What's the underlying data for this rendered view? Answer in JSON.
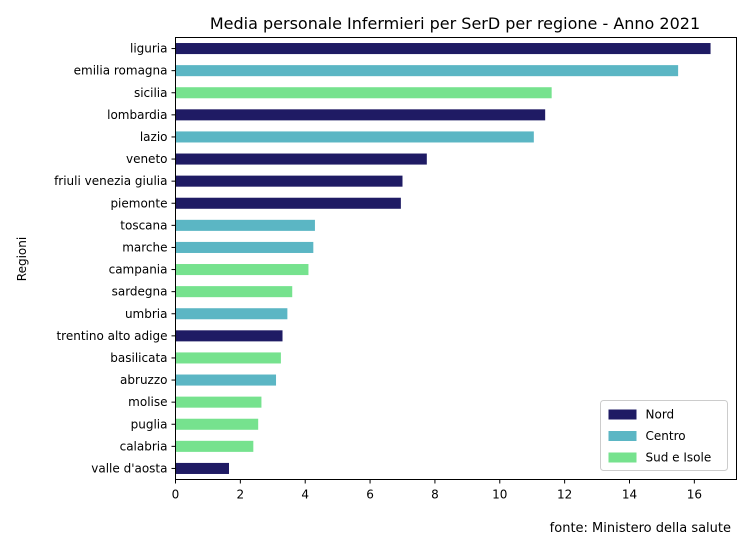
{
  "chart_data": {
    "type": "bar",
    "orientation": "horizontal",
    "title": "Media personale Infermieri per SerD per regione - Anno 2021",
    "xlabel": "",
    "ylabel": "Regioni",
    "xlim": [
      0,
      17.3
    ],
    "x_ticks": [
      "0",
      "2",
      "4",
      "6",
      "8",
      "10",
      "12",
      "14",
      "16"
    ],
    "grid": false,
    "legend_position": "bottom-right",
    "note": "fonte: Ministero della salute",
    "series": [
      {
        "name": "Nord",
        "color": "#1f1b64"
      },
      {
        "name": "Centro",
        "color": "#5bb6c4"
      },
      {
        "name": "Sud e Isole",
        "color": "#76e28e"
      }
    ],
    "bars": [
      {
        "category": "liguria",
        "value": 16.5,
        "series": "Nord"
      },
      {
        "category": "emilia romagna",
        "value": 15.5,
        "series": "Centro"
      },
      {
        "category": "sicilia",
        "value": 11.6,
        "series": "Sud e Isole"
      },
      {
        "category": "lombardia",
        "value": 11.4,
        "series": "Nord"
      },
      {
        "category": "lazio",
        "value": 11.05,
        "series": "Centro"
      },
      {
        "category": "veneto",
        "value": 7.75,
        "series": "Nord"
      },
      {
        "category": "friuli venezia giulia",
        "value": 7.0,
        "series": "Nord"
      },
      {
        "category": "piemonte",
        "value": 6.95,
        "series": "Nord"
      },
      {
        "category": "toscana",
        "value": 4.3,
        "series": "Centro"
      },
      {
        "category": "marche",
        "value": 4.25,
        "series": "Centro"
      },
      {
        "category": "campania",
        "value": 4.1,
        "series": "Sud e Isole"
      },
      {
        "category": "sardegna",
        "value": 3.6,
        "series": "Sud e Isole"
      },
      {
        "category": "umbria",
        "value": 3.45,
        "series": "Centro"
      },
      {
        "category": "trentino alto adige",
        "value": 3.3,
        "series": "Nord"
      },
      {
        "category": "basilicata",
        "value": 3.25,
        "series": "Sud e Isole"
      },
      {
        "category": "abruzzo",
        "value": 3.1,
        "series": "Centro"
      },
      {
        "category": "molise",
        "value": 2.65,
        "series": "Sud e Isole"
      },
      {
        "category": "puglia",
        "value": 2.55,
        "series": "Sud e Isole"
      },
      {
        "category": "calabria",
        "value": 2.4,
        "series": "Sud e Isole"
      },
      {
        "category": "valle d'aosta",
        "value": 1.65,
        "series": "Nord"
      }
    ]
  }
}
